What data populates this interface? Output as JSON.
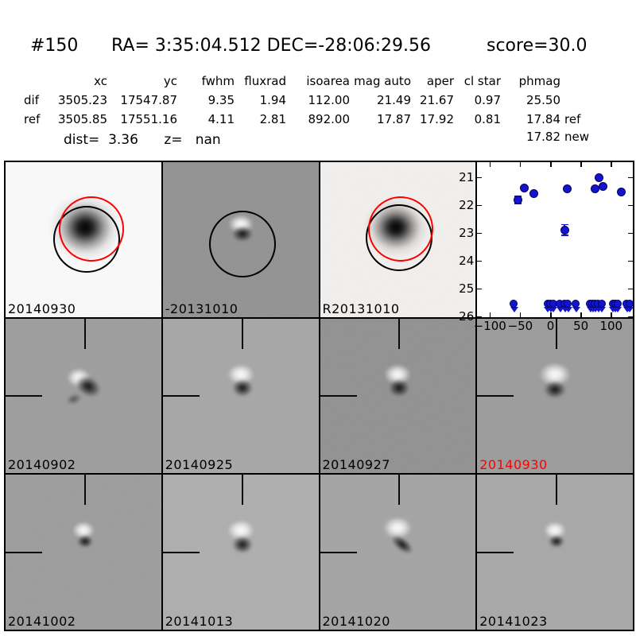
{
  "header": {
    "id": "#150",
    "radec": "RA= 3:35:04.512 DEC=-28:06:29.56",
    "score": "score=30.0"
  },
  "table": {
    "columns": [
      "",
      "xc",
      "yc",
      "fwhm",
      "fluxrad",
      "isoarea",
      "mag auto",
      "aper",
      "cl star",
      "phmag",
      ""
    ],
    "rows": [
      [
        "dif",
        "3505.23",
        "17547.87",
        "9.35",
        "1.94",
        "112.00",
        "21.49",
        "21.67",
        "0.97",
        "25.50",
        ""
      ],
      [
        "ref",
        "3505.85",
        "17551.16",
        "4.11",
        "2.81",
        "892.00",
        "17.87",
        "17.92",
        "0.81",
        "17.84",
        "ref"
      ],
      [
        "",
        "",
        "",
        "",
        "",
        "",
        "",
        "",
        "",
        "17.82",
        "new"
      ]
    ],
    "dist_line": "dist=  3.36      z=   nan"
  },
  "colors": {
    "accent_red": "#ff0000",
    "aperture_black": "#000000",
    "aperture_red": "#ff0000",
    "marker_blue": "#1414cc",
    "marker_edge": "#000066"
  },
  "panels": [
    {
      "label": "20140930",
      "label_color": "#000000",
      "bg": "#fbfbfb",
      "kind": "stamp",
      "variant": "v-newdet"
    },
    {
      "label": "-20131010",
      "label_color": "#000000",
      "bg": "#8f8f8f",
      "kind": "stamp",
      "variant": "v-refdip"
    },
    {
      "label": "R20131010",
      "label_color": "#000000",
      "bg": "#f3f1ef",
      "kind": "stamp",
      "variant": "v-refsm"
    },
    {
      "label": "",
      "label_color": "#000000",
      "bg": "#ffffff",
      "kind": "plot",
      "variant": ""
    },
    {
      "label": "20140902",
      "label_color": "#000000",
      "bg": "#9b9b9b",
      "kind": "stamp-cross",
      "variant": "v-messy"
    },
    {
      "label": "20140925",
      "label_color": "#000000",
      "bg": "#a5a5a5",
      "kind": "stamp-cross",
      "variant": "v-dipole"
    },
    {
      "label": "20140927",
      "label_color": "#000000",
      "bg": "#8e8e8e",
      "kind": "stamp-cross",
      "variant": "v-dipole"
    },
    {
      "label": "20140930",
      "label_color": "#ff0000",
      "bg": "#999999",
      "kind": "stamp-cross",
      "variant": "v-bright"
    },
    {
      "label": "20141002",
      "label_color": "#000000",
      "bg": "#9a9a9a",
      "kind": "stamp-cross",
      "variant": "v-small"
    },
    {
      "label": "20141013",
      "label_color": "#000000",
      "bg": "#adadad",
      "kind": "stamp-cross",
      "variant": "v-dipole"
    },
    {
      "label": "20141020",
      "label_color": "#000000",
      "bg": "#a2a2a2",
      "kind": "stamp-cross",
      "variant": "v-streak"
    },
    {
      "label": "20141023",
      "label_color": "#000000",
      "bg": "#a6a6a6",
      "kind": "stamp-cross",
      "variant": "v-small"
    }
  ],
  "chart_data": {
    "type": "scatter",
    "title": "",
    "xlabel": "",
    "ylabel": "",
    "legend": "none",
    "grid": false,
    "y_axis_inverted": true,
    "xlim": [
      -121,
      136
    ],
    "ylim_top": 20.45,
    "ylim_bottom": 26.02,
    "xticks": [
      -100,
      -50,
      0,
      50,
      100
    ],
    "xtick_labels": [
      "−100",
      "−50",
      "0",
      "50",
      "100"
    ],
    "yticks": [
      21,
      22,
      23,
      24,
      25,
      26
    ],
    "series": [
      {
        "name": "detections",
        "marker": "circle",
        "color": "#1414cc",
        "points": [
          {
            "x": -54,
            "mag": 21.8,
            "err": 0.12
          },
          {
            "x": -43,
            "mag": 21.37
          },
          {
            "x": -27,
            "mag": 21.58
          },
          {
            "x": 23,
            "mag": 22.88,
            "err": 0.18
          },
          {
            "x": 28,
            "mag": 21.4
          },
          {
            "x": 74,
            "mag": 21.4
          },
          {
            "x": 80,
            "mag": 21.0
          },
          {
            "x": 87,
            "mag": 21.33
          },
          {
            "x": 117,
            "mag": 21.53
          }
        ]
      },
      {
        "name": "upper-limits",
        "marker": "circle-down-arrow",
        "color": "#1414cc",
        "mag": 25.55,
        "x": [
          -60,
          -4,
          0,
          5,
          16,
          24,
          29,
          42,
          66,
          70,
          74,
          79,
          85,
          103,
          107,
          111,
          126,
          131
        ]
      }
    ]
  }
}
